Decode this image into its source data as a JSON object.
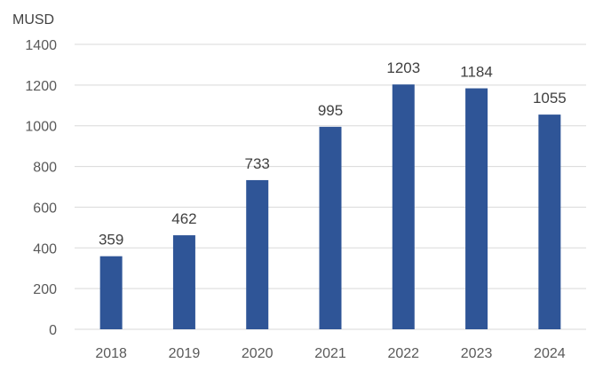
{
  "chart_data": {
    "type": "bar",
    "title": "",
    "unit_label": "MUSD",
    "xlabel": "",
    "ylabel": "",
    "categories": [
      "2018",
      "2019",
      "2020",
      "2021",
      "2022",
      "2023",
      "2024"
    ],
    "values": [
      359,
      462,
      733,
      995,
      1203,
      1184,
      1055
    ],
    "ylim": [
      0,
      1400
    ],
    "yticks": [
      0,
      200,
      400,
      600,
      800,
      1000,
      1200,
      1400
    ],
    "grid": true,
    "legend": "none",
    "bar_color": "#2f5597",
    "data_labels": true
  }
}
